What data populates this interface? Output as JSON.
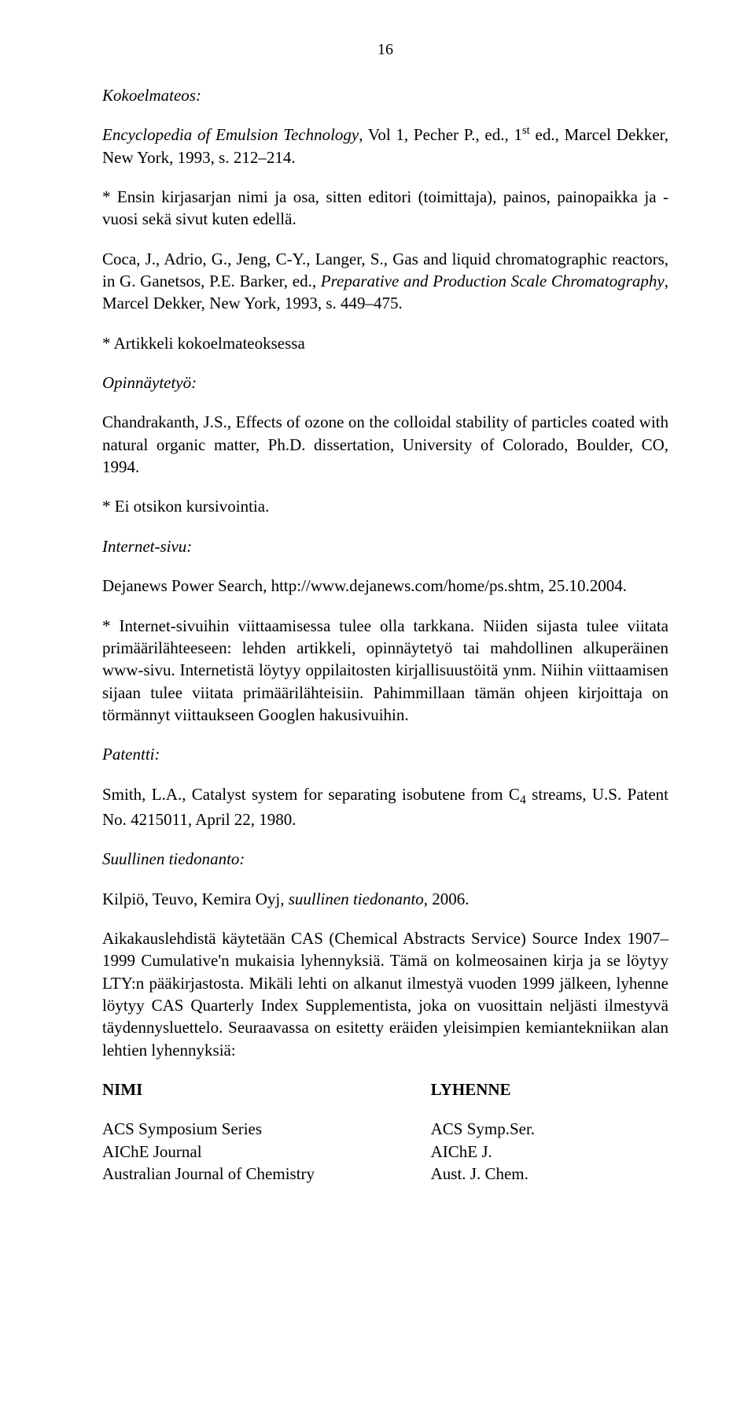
{
  "pageNumber": "16",
  "heading1": "Kokoelmateos:",
  "para1a": "Encyclopedia of Emulsion Technology",
  "para1b": ", Vol 1, Pecher P., ed., 1",
  "para1sup": "st",
  "para1c": " ed., Marcel Dekker, New York, 1993, s. 212–214.",
  "para2": "* Ensin kirjasarjan nimi ja osa, sitten editori (toimittaja), painos, painopaikka ja -vuosi sekä sivut kuten edellä.",
  "para3a": "Coca, J., Adrio, G., Jeng, C-Y., Langer, S., Gas and liquid chromatographic reactors, in G. Ganetsos, P.E. Barker, ed., ",
  "para3b": "Preparative and Production Scale Chromatography",
  "para3c": ", Marcel Dekker, New York, 1993, s. 449–475.",
  "para4": "* Artikkeli kokoelmateoksessa",
  "heading2": "Opinnäytetyö:",
  "para5": "Chandrakanth, J.S., Effects of ozone on the colloidal stability of particles coated with natural organic matter, Ph.D. dissertation, University of Colorado, Boulder, CO, 1994.",
  "para6": "* Ei otsikon kursivointia.",
  "heading3": "Internet-sivu:",
  "para7": "Dejanews Power Search, http://www.dejanews.com/home/ps.shtm, 25.10.2004.",
  "para8": "* Internet-sivuihin viittaamisessa tulee olla tarkkana. Niiden sijasta tulee viitata primäärilähteeseen: lehden artikkeli, opinnäytetyö tai mahdollinen alkuperäinen www-sivu. Internetistä löytyy oppilaitosten kirjallisuustöitä ynm. Niihin viittaamisen sijaan tulee viitata primäärilähteisiin. Pahimmillaan tämän ohjeen kirjoittaja on törmännyt viittaukseen Googlen hakusivuihin.",
  "heading4": "Patentti:",
  "para9a": "Smith, L.A., Catalyst system for separating isobutene from C",
  "para9sub": "4",
  "para9b": " streams, U.S. Patent No. 4215011, April 22, 1980.",
  "heading5": "Suullinen tiedonanto:",
  "para10a": "Kilpiö, Teuvo, Kemira Oyj, ",
  "para10b": "suullinen tiedonanto",
  "para10c": ", 2006.",
  "para11": "Aikakauslehdistä käytetään CAS (Chemical Abstracts Service) Source Index 1907–1999 Cumulative'n mukaisia lyhennyksiä. Tämä on kolmeosainen kirja ja se löytyy LTY:n pääkirjastosta. Mikäli lehti on alkanut ilmestyä vuoden 1999 jälkeen, lyhenne löytyy CAS Quarterly Index Supplementista, joka on vuosittain neljästi ilmestyvä täydennysluettelo. Seuraavassa on esitetty eräiden yleisimpien kemiantekniikan alan lehtien lyhennyksiä:",
  "colHead1": "NIMI",
  "colHead2": "LYHENNE",
  "rows": [
    {
      "left": "ACS Symposium Series",
      "right": "ACS Symp.Ser."
    },
    {
      "left": "AIChE Journal",
      "right": "AIChE J."
    },
    {
      "left": "Australian Journal of Chemistry",
      "right": "Aust. J. Chem."
    }
  ]
}
